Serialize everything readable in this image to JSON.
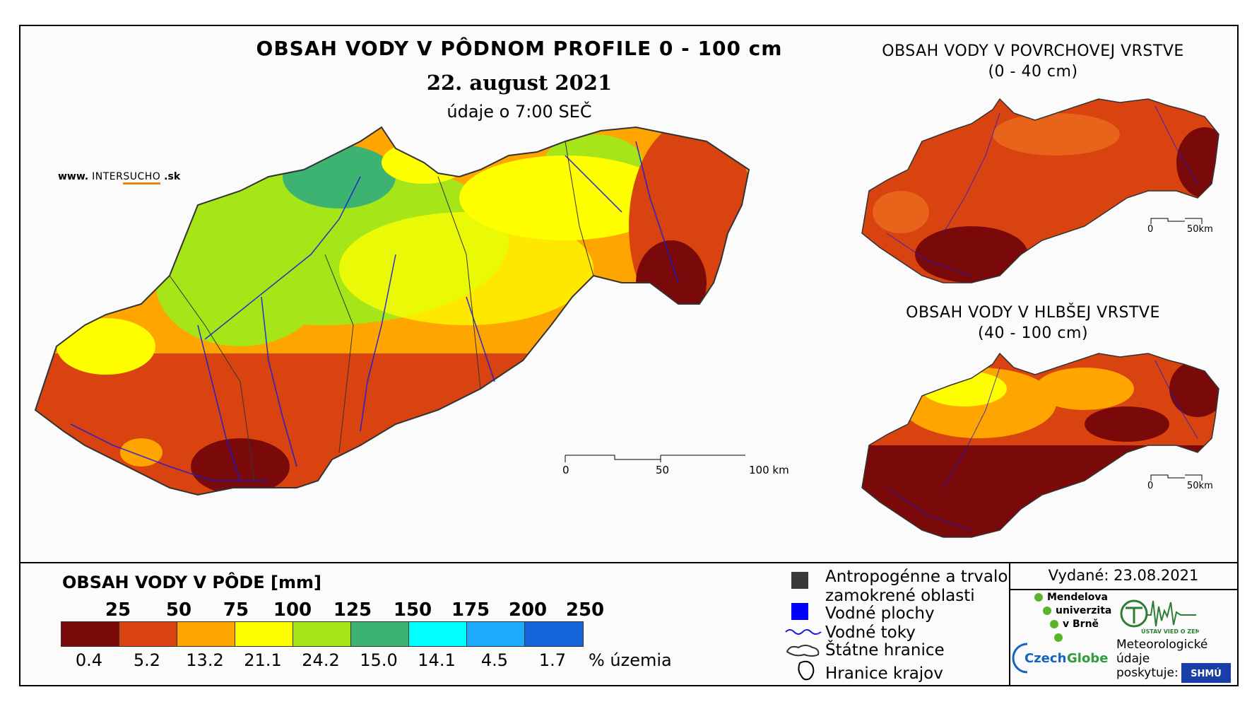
{
  "header": {
    "title": "OBSAH VODY V PÔDNOM PROFILE 0 - 100 cm",
    "date": "22. august 2021",
    "subtitle": "údaje o 7:00 SEČ",
    "site_prefix": "www. ",
    "site_brand_a": "INTER",
    "site_brand_b": "SUCHO",
    "site_suffix": " .sk"
  },
  "main_map": {
    "scale": {
      "l0": "0",
      "l1": "50",
      "l2": "100 km"
    }
  },
  "surface_map": {
    "title_line1": "OBSAH VODY V POVRCHOVEJ VRSTVE",
    "title_line2": "(0 - 40 cm)",
    "scale": {
      "l0": "0",
      "l1": "50km"
    }
  },
  "deep_map": {
    "title_line1": "OBSAH VODY V HLBŠEJ VRSTVE",
    "title_line2": "(40 - 100 cm)",
    "scale": {
      "l0": "0",
      "l1": "50km"
    }
  },
  "legend": {
    "title": "OBSAH VODY V PÔDE [mm]",
    "thresholds": [
      "25",
      "50",
      "75",
      "100",
      "125",
      "150",
      "175",
      "200",
      "250"
    ],
    "colors": [
      "#7a0a0a",
      "#d9430f",
      "#ffa500",
      "#ffff00",
      "#a6e619",
      "#3cb371",
      "#00ffff",
      "#1eaaff",
      "#1464dc"
    ],
    "percentages": [
      "0.4",
      "5.2",
      "13.2",
      "21.1",
      "24.2",
      "15.0",
      "14.1",
      "4.5",
      "1.7"
    ],
    "percent_label": "% územia"
  },
  "symbols": {
    "anthropogenic_line1": "Antropogénne a trvalo",
    "anthropogenic_line2": "zamokrené oblasti",
    "water_bodies": "Vodné plochy",
    "rivers": "Vodné toky",
    "state_border": "Štátne hranice",
    "regional_border": "Hranice krajov"
  },
  "footer": {
    "issued": "Vydané: 23.08.2021",
    "mendel_l1": "Mendelova",
    "mendel_l2": "univerzita",
    "mendel_l3": "v Brně",
    "czechglobe_a": "Czech",
    "czechglobe_b": "Globe",
    "uvgz": "ÚSTAV VIED O ZEMI",
    "meteo_l1": "Meteorologické",
    "meteo_l2": "údaje",
    "meteo_l3": "poskytuje:",
    "shmu": "SHMÚ"
  }
}
